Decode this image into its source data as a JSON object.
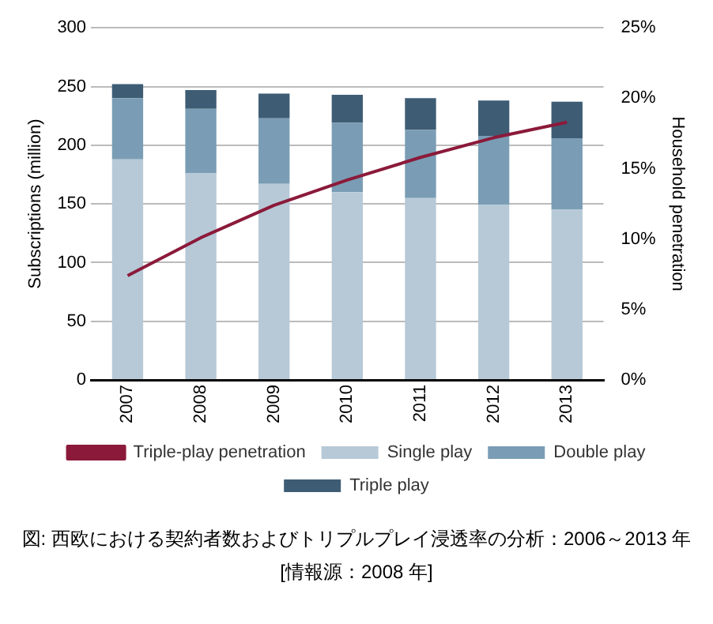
{
  "chart_data": {
    "type": "bar",
    "stacked": true,
    "categories": [
      "2007",
      "2008",
      "2009",
      "2010",
      "2011",
      "2012",
      "2013"
    ],
    "series": [
      {
        "name": "Single play",
        "color": "#b7c9d7",
        "values": [
          188,
          176,
          167,
          160,
          155,
          149,
          145
        ]
      },
      {
        "name": "Double play",
        "color": "#7a9db5",
        "values": [
          52,
          55,
          56,
          59,
          58,
          59,
          61
        ]
      },
      {
        "name": "Triple play",
        "color": "#3e5d75",
        "values": [
          12,
          16,
          21,
          24,
          27,
          30,
          31
        ]
      },
      {
        "name": "Triple-play penetration",
        "type": "line",
        "axis": "y2",
        "color": "#8b1a3a",
        "values": [
          7.4,
          10.1,
          12.4,
          14.2,
          15.8,
          17.2,
          18.3
        ]
      }
    ],
    "ylabel": "Subscriptions (million)",
    "y2label": "Household penetration",
    "ylim": [
      0,
      300
    ],
    "yticks": [
      0,
      50,
      100,
      150,
      200,
      250,
      300
    ],
    "y2lim": [
      0,
      25
    ],
    "y2ticks": [
      {
        "value": 0,
        "label": "0%"
      },
      {
        "value": 5,
        "label": "5%"
      },
      {
        "value": 10,
        "label": "10%"
      },
      {
        "value": 15,
        "label": "15%"
      },
      {
        "value": 20,
        "label": "20%"
      },
      {
        "value": 25,
        "label": "25%"
      }
    ],
    "grid": "y",
    "legend": "bottom",
    "marker": "none",
    "line_style": "solid",
    "annotations": [
      "図:  西欧における契約者数およびトリプルプレイ浸透率の分析：2006～2013 年",
      "[情報源：2008 年]"
    ]
  }
}
